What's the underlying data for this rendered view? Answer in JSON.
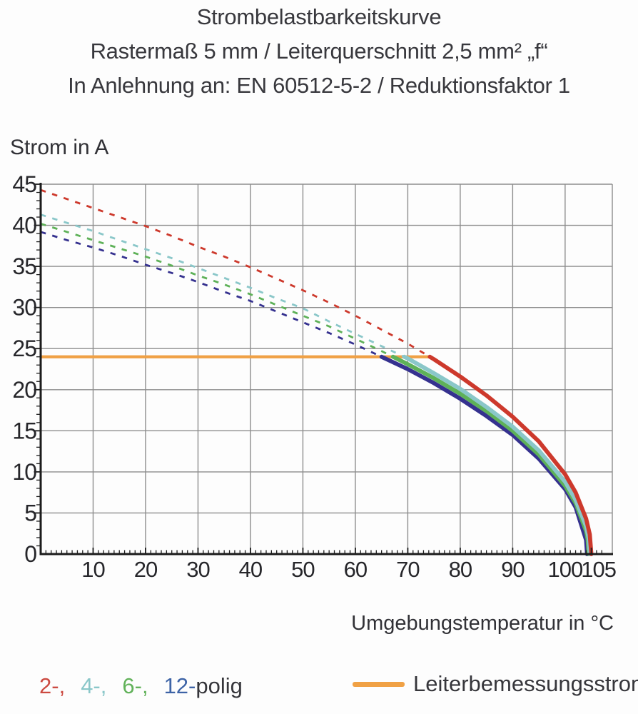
{
  "header": {
    "line1": "Strombelastbarkeitskurve",
    "line2": "Rastermaß 5 mm / Leiterquerschnitt 2,5 mm² „f“",
    "line3": "In Anlehnung an: EN 60512-5-2 / Reduktionsfaktor 1"
  },
  "axes": {
    "y_title": "Strom in A",
    "x_title": "Umgebungstemperatur in °C"
  },
  "legend": {
    "poles": {
      "items": [
        {
          "label": "2-,",
          "color": "#cc4a41"
        },
        {
          "label": "4-,",
          "color": "#8ac7c9"
        },
        {
          "label": "6-,",
          "color": "#62b25a"
        },
        {
          "label": "12-",
          "color": "#3d63a6"
        },
        {
          "label": "polig",
          "color": "#36363b"
        }
      ]
    },
    "rated": {
      "label": "Leiterbemessungsstrom",
      "swatch_color": "#f0a145"
    }
  },
  "chart_data": {
    "type": "line",
    "title": "Strombelastbarkeitskurve",
    "xlabel": "Umgebungstemperatur in °C",
    "ylabel": "Strom in A",
    "xlim": [
      0,
      109
    ],
    "ylim": [
      0,
      45
    ],
    "grid": true,
    "legend_position": "bottom",
    "x_ticks": [
      {
        "v": 10,
        "label": "10"
      },
      {
        "v": 20,
        "label": "20"
      },
      {
        "v": 30,
        "label": "30"
      },
      {
        "v": 40,
        "label": "40"
      },
      {
        "v": 50,
        "label": "50"
      },
      {
        "v": 60,
        "label": "60"
      },
      {
        "v": 70,
        "label": "70"
      },
      {
        "v": 80,
        "label": "80"
      },
      {
        "v": 90,
        "label": "90"
      },
      {
        "v": 100,
        "label": "100"
      },
      {
        "v": 105,
        "label": "105",
        "dx": 10
      }
    ],
    "y_ticks": [
      {
        "v": 0,
        "label": "0"
      },
      {
        "v": 5,
        "label": "5"
      },
      {
        "v": 10,
        "label": "10"
      },
      {
        "v": 15,
        "label": "15"
      },
      {
        "v": 20,
        "label": "20"
      },
      {
        "v": 25,
        "label": "25"
      },
      {
        "v": 30,
        "label": "30"
      },
      {
        "v": 35,
        "label": "35"
      },
      {
        "v": 40,
        "label": "40"
      },
      {
        "v": 45,
        "label": "45"
      }
    ],
    "x_gridlines": [
      10,
      20,
      30,
      40,
      50,
      60,
      70,
      80,
      90,
      100
    ],
    "y_gridlines": [
      5,
      10,
      15,
      20,
      25,
      30,
      35,
      40,
      45
    ],
    "x_minor_step": 1,
    "y_minor_step": 1,
    "grid_color": "#8d8d8d",
    "axis_color": "#1c1c1c",
    "tick_label_color": "#26262a",
    "threshold_solid_below": 24,
    "rated_current_line": {
      "name": "Leiterbemessungsstrom",
      "y": 24,
      "x_start": 0,
      "x_end": 74.2,
      "color": "#f0a145"
    },
    "series": [
      {
        "name": "2-polig",
        "color": "#cd392c",
        "points": [
          [
            0,
            44.3
          ],
          [
            5,
            43.2
          ],
          [
            10,
            42.1
          ],
          [
            15,
            41.0
          ],
          [
            20,
            39.9
          ],
          [
            25,
            38.7
          ],
          [
            30,
            37.4
          ],
          [
            35,
            36.2
          ],
          [
            40,
            34.9
          ],
          [
            45,
            33.5
          ],
          [
            50,
            32.1
          ],
          [
            55,
            30.6
          ],
          [
            60,
            29.0
          ],
          [
            65,
            27.3
          ],
          [
            70,
            25.6
          ],
          [
            75,
            23.7
          ],
          [
            80,
            21.6
          ],
          [
            85,
            19.3
          ],
          [
            90,
            16.7
          ],
          [
            95,
            13.7
          ],
          [
            100,
            9.7
          ],
          [
            102,
            7.5
          ],
          [
            104,
            4.3
          ],
          [
            104.7,
            2.4
          ],
          [
            105,
            0
          ]
        ]
      },
      {
        "name": "4-polig",
        "color": "#8ac7c9",
        "points": [
          [
            0,
            41.3
          ],
          [
            5,
            40.3
          ],
          [
            10,
            39.3
          ],
          [
            15,
            38.2
          ],
          [
            20,
            37.1
          ],
          [
            25,
            36.0
          ],
          [
            30,
            34.8
          ],
          [
            35,
            33.6
          ],
          [
            40,
            32.4
          ],
          [
            45,
            31.1
          ],
          [
            50,
            29.9
          ],
          [
            55,
            28.3
          ],
          [
            60,
            26.8
          ],
          [
            65,
            25.3
          ],
          [
            70,
            23.8
          ],
          [
            75,
            22.0
          ],
          [
            80,
            20.1
          ],
          [
            85,
            17.9
          ],
          [
            90,
            15.5
          ],
          [
            95,
            12.6
          ],
          [
            100,
            8.8
          ],
          [
            102,
            6.6
          ],
          [
            104,
            3.4
          ],
          [
            104.5,
            1.9
          ],
          [
            104.7,
            0
          ]
        ]
      },
      {
        "name": "6-polig",
        "color": "#5eb158",
        "points": [
          [
            0,
            40.2
          ],
          [
            5,
            39.2
          ],
          [
            10,
            38.2
          ],
          [
            15,
            37.2
          ],
          [
            20,
            36.2
          ],
          [
            25,
            35.1
          ],
          [
            30,
            33.9
          ],
          [
            35,
            32.8
          ],
          [
            40,
            31.6
          ],
          [
            45,
            30.3
          ],
          [
            50,
            29.0
          ],
          [
            55,
            27.7
          ],
          [
            60,
            26.2
          ],
          [
            65,
            24.7
          ],
          [
            70,
            23.1
          ],
          [
            75,
            21.4
          ],
          [
            80,
            19.5
          ],
          [
            85,
            17.4
          ],
          [
            90,
            15.0
          ],
          [
            95,
            12.1
          ],
          [
            100,
            8.3
          ],
          [
            102,
            6.2
          ],
          [
            104,
            2.8
          ],
          [
            104.3,
            1.8
          ],
          [
            104.5,
            0
          ]
        ]
      },
      {
        "name": "12-polig",
        "color": "#35318f",
        "points": [
          [
            0,
            39.2
          ],
          [
            5,
            38.2
          ],
          [
            10,
            37.3
          ],
          [
            15,
            36.3
          ],
          [
            20,
            35.2
          ],
          [
            25,
            34.2
          ],
          [
            30,
            33.1
          ],
          [
            35,
            31.9
          ],
          [
            40,
            30.8
          ],
          [
            45,
            29.5
          ],
          [
            50,
            28.2
          ],
          [
            55,
            26.9
          ],
          [
            60,
            25.5
          ],
          [
            65,
            24.0
          ],
          [
            70,
            22.5
          ],
          [
            75,
            20.8
          ],
          [
            80,
            18.9
          ],
          [
            85,
            16.8
          ],
          [
            90,
            14.5
          ],
          [
            95,
            11.6
          ],
          [
            100,
            7.9
          ],
          [
            102,
            5.7
          ],
          [
            104,
            1.7
          ],
          [
            104.2,
            0
          ]
        ]
      }
    ]
  }
}
